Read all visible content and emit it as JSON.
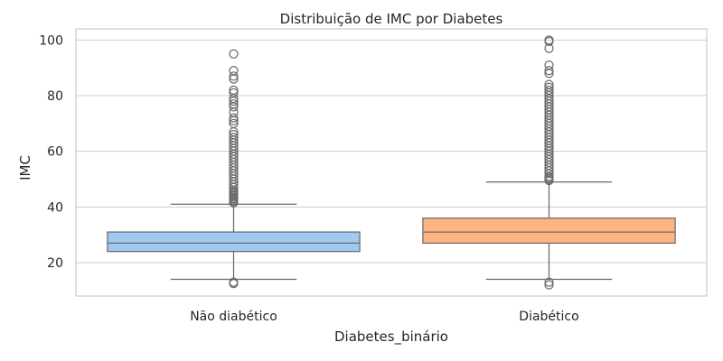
{
  "chart_data": {
    "type": "box",
    "title": "Distribuição de IMC por Diabetes",
    "xlabel": "Diabetes_binário",
    "ylabel": "IMC",
    "ylim": [
      8,
      104
    ],
    "yticks": [
      20,
      40,
      60,
      80,
      100
    ],
    "grid": true,
    "categories": [
      "Não diabético",
      "Diabético"
    ],
    "colors": {
      "Não diabético": "#a1c9f4",
      "Diabético": "#ffb482",
      "line": "#6b6b6b",
      "grid": "#cccccc",
      "frame": "#cccccc"
    },
    "boxes": [
      {
        "category": "Não diabético",
        "whisker_low": 14,
        "q1": 24,
        "median": 27,
        "q3": 31,
        "whisker_high": 41,
        "outliers": [
          12.5,
          13,
          41.5,
          42,
          42.5,
          43,
          43.5,
          44,
          44.5,
          45,
          45.5,
          46,
          47,
          48,
          49,
          50,
          51,
          52,
          53,
          54,
          55,
          56,
          57,
          58,
          59,
          60,
          61,
          62,
          63,
          64,
          65,
          66,
          67,
          70,
          71,
          72,
          74,
          76,
          77,
          78,
          79,
          81,
          82,
          86,
          87,
          89,
          95
        ]
      },
      {
        "category": "Diabético",
        "whisker_low": 14,
        "q1": 27,
        "median": 31,
        "q3": 36,
        "whisker_high": 49,
        "outliers": [
          12,
          13,
          49.5,
          50,
          50.5,
          51,
          52,
          53,
          54,
          55,
          56,
          57,
          58,
          59,
          60,
          61,
          62,
          63,
          64,
          65,
          66,
          67,
          68,
          69,
          70,
          71,
          72,
          73,
          74,
          75,
          76,
          77,
          78,
          79,
          80,
          81,
          82,
          83,
          84,
          88,
          89,
          91,
          97,
          99.5,
          100
        ]
      }
    ]
  }
}
